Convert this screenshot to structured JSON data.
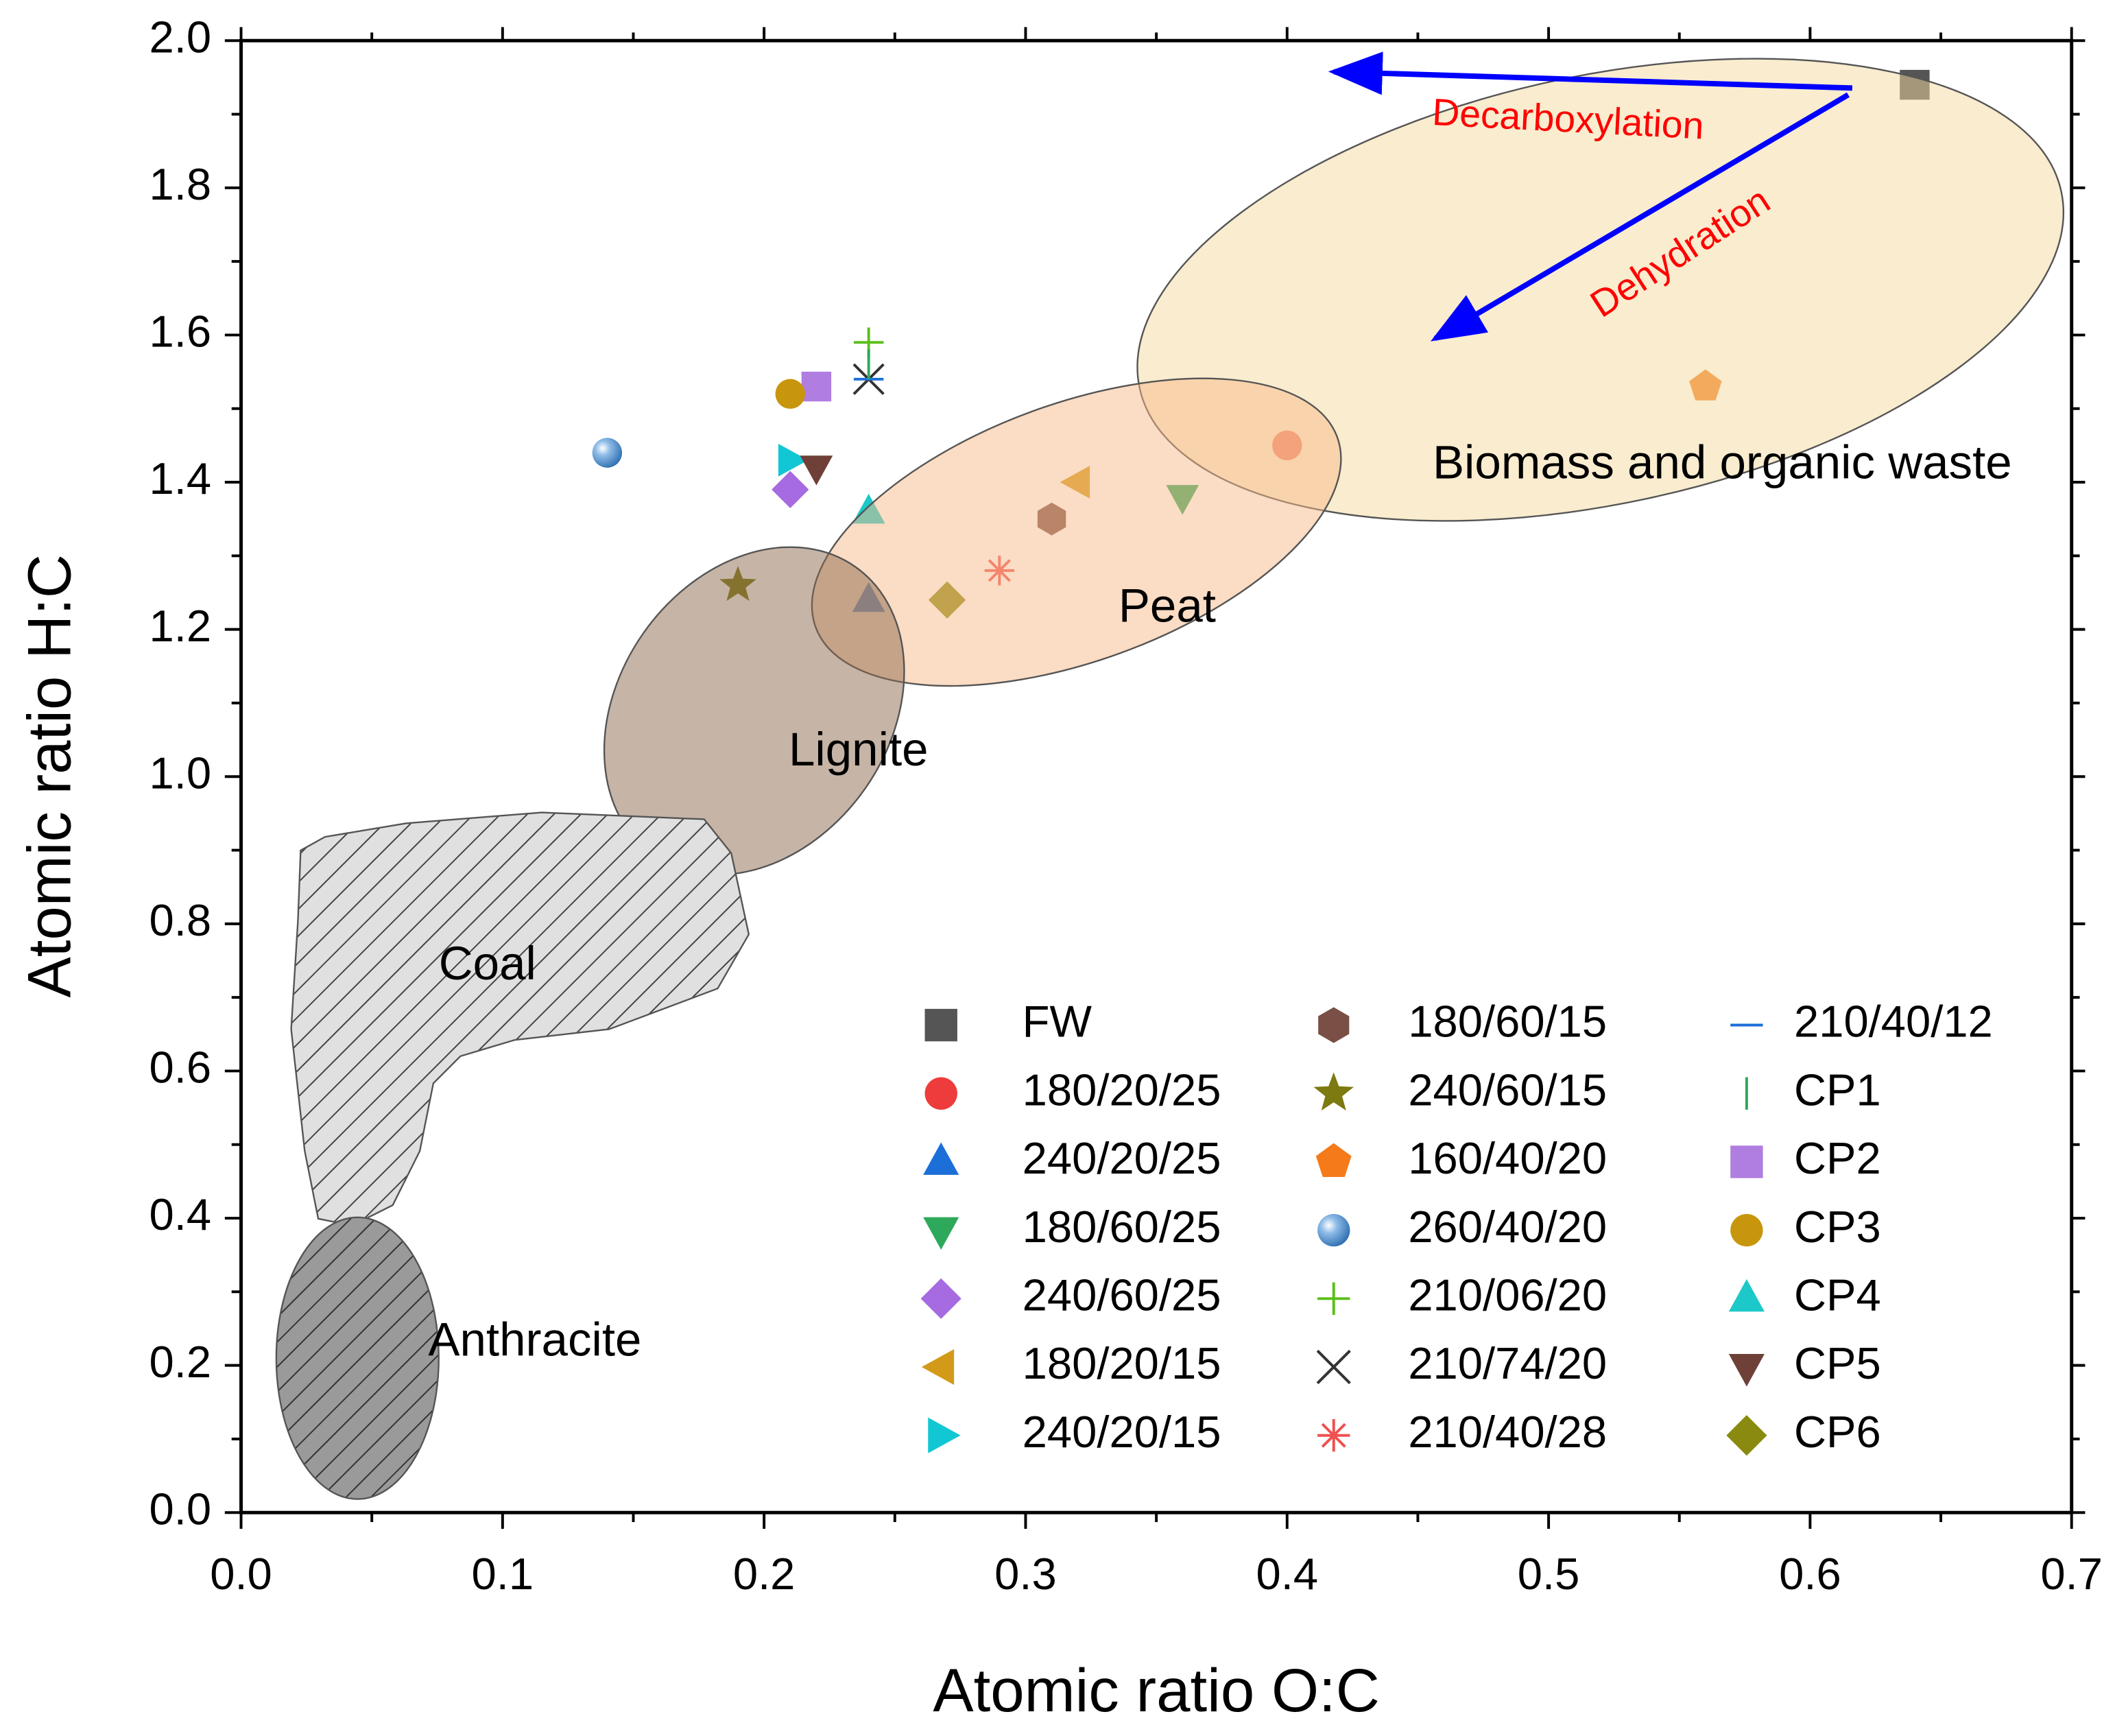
{
  "chart_data": {
    "type": "scatter",
    "x_label": "Atomic ratio O:C",
    "y_label": "Atomic ratio H:C",
    "xlim": [
      0,
      0.7
    ],
    "ylim": [
      0,
      2.0
    ],
    "xticks": [
      {
        "value": 0,
        "label": "0.0"
      },
      0.1,
      0.2,
      0.3,
      0.4,
      0.5,
      0.6,
      0.7
    ],
    "yticks": [
      {
        "value": 0,
        "label": "0.0"
      },
      0.2,
      0.4,
      0.6,
      0.8,
      {
        "value": 1,
        "label": "1.0"
      },
      1.2,
      1.4,
      1.6,
      1.8,
      {
        "value": 2,
        "label": "2.0"
      }
    ],
    "annotations": [
      "Decarboxylation",
      "Dehydration",
      "Biomass and organic waste",
      "Peat",
      "Lignite",
      "Coal",
      "Anthracite"
    ],
    "series": [
      {
        "name": "FW",
        "color": "#555555",
        "marker": "square",
        "x": [
          0.64
        ],
        "values": [
          1.94
        ]
      },
      {
        "name": "180/20/25",
        "color": "#ee3b3b",
        "marker": "circle",
        "x": [
          0.4
        ],
        "values": [
          1.45
        ]
      },
      {
        "name": "240/20/25",
        "color": "#1c6fd8",
        "marker": "triangle-up",
        "x": [
          0.24
        ],
        "values": [
          1.24
        ]
      },
      {
        "name": "180/60/25",
        "color": "#2ea85a",
        "marker": "triangle-down",
        "x": [
          0.36
        ],
        "values": [
          1.38
        ]
      },
      {
        "name": "240/60/25",
        "color": "#a66be0",
        "marker": "diamond",
        "x": [
          0.21
        ],
        "values": [
          1.39
        ]
      },
      {
        "name": "180/20/15",
        "color": "#d39a1a",
        "marker": "triangle-left",
        "x": [
          0.32
        ],
        "values": [
          1.4
        ]
      },
      {
        "name": "240/20/15",
        "color": "#12c7d4",
        "marker": "triangle-right",
        "x": [
          0.21
        ],
        "values": [
          1.43
        ]
      },
      {
        "name": "180/60/15",
        "color": "#7a4f45",
        "marker": "hexagon",
        "x": [
          0.31
        ],
        "values": [
          1.35
        ]
      },
      {
        "name": "240/60/15",
        "color": "#7c7a10",
        "marker": "star",
        "x": [
          0.19
        ],
        "values": [
          1.26
        ]
      },
      {
        "name": "160/40/20",
        "color": "#f47a1a",
        "marker": "pentagon",
        "x": [
          0.56
        ],
        "values": [
          1.53
        ]
      },
      {
        "name": "260/40/20",
        "color": "#4d8ed0",
        "marker": "sphere",
        "x": [
          0.14
        ],
        "values": [
          1.44
        ]
      },
      {
        "name": "210/06/20",
        "color": "#5cbf1a",
        "marker": "plus",
        "x": [
          0.24
        ],
        "values": [
          1.59
        ]
      },
      {
        "name": "210/74/20",
        "color": "#333333",
        "marker": "x",
        "x": [
          0.24
        ],
        "values": [
          1.54
        ]
      },
      {
        "name": "210/40/28",
        "color": "#f05050",
        "marker": "asterisk",
        "x": [
          0.29
        ],
        "values": [
          1.28
        ]
      },
      {
        "name": "210/40/12",
        "color": "#1c6fd8",
        "marker": "hline",
        "x": [
          0.24
        ],
        "values": [
          1.54
        ]
      },
      {
        "name": "CP1",
        "color": "#2ea85a",
        "marker": "vline",
        "x": [
          0.24
        ],
        "values": [
          1.56
        ]
      },
      {
        "name": "CP2",
        "color": "#b07de0",
        "marker": "square",
        "x": [
          0.22
        ],
        "values": [
          1.53
        ]
      },
      {
        "name": "CP3",
        "color": "#c8960c",
        "marker": "circle",
        "x": [
          0.21
        ],
        "values": [
          1.52
        ]
      },
      {
        "name": "CP4",
        "color": "#1cc8c8",
        "marker": "triangle-up",
        "x": [
          0.24
        ],
        "values": [
          1.36
        ]
      },
      {
        "name": "CP5",
        "color": "#6e4038",
        "marker": "triangle-down",
        "x": [
          0.22
        ],
        "values": [
          1.42
        ]
      },
      {
        "name": "CP6",
        "color": "#8a8a10",
        "marker": "diamond",
        "x": [
          0.27
        ],
        "values": [
          1.24
        ]
      }
    ]
  }
}
